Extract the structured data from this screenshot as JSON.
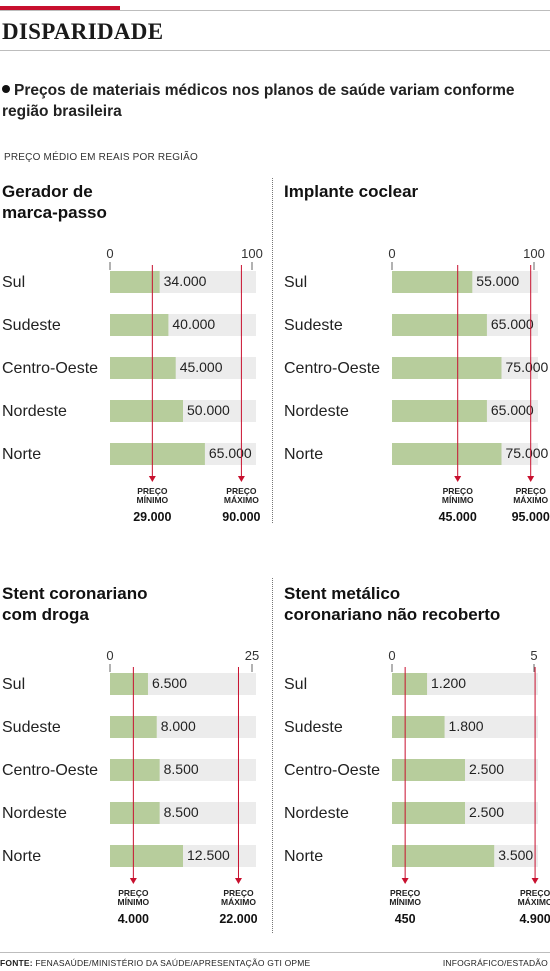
{
  "header": {
    "title": "DISPARIDADE",
    "subtitle": "Preços de materiais médicos nos planos de saúde variam conforme região brasileira",
    "unit": "PREÇO MÉDIO EM REAIS POR REGIÃO"
  },
  "footer": {
    "source_label": "FONTE:",
    "source_text": "FENASAÚDE/MINISTÉRIO DA SAÚDE/APRESENTAÇÃO GTI OPME",
    "credit": "INFOGRÁFICO/ESTADÃO"
  },
  "colors": {
    "bar": "#b7cd9c",
    "track": "#ececec",
    "marker": "#c8102e",
    "accent": "#c8102e"
  },
  "chart_data": [
    {
      "type": "bar",
      "title_lines": [
        "Gerador de",
        "marca-passo"
      ],
      "scale_max": 100000,
      "tick_labels": [
        "0",
        "100"
      ],
      "categories": [
        "Sul",
        "Sudeste",
        "Centro-Oeste",
        "Nordeste",
        "Norte"
      ],
      "values": [
        34000,
        40000,
        45000,
        50000,
        65000
      ],
      "value_labels": [
        "34.000",
        "40.000",
        "45.000",
        "50.000",
        "65.000"
      ],
      "min": {
        "label_lines": [
          "PREÇO",
          "MÍNIMO"
        ],
        "value": 29000,
        "value_label": "29.000"
      },
      "max": {
        "label_lines": [
          "PREÇO",
          "MÁXIMO"
        ],
        "value": 90000,
        "value_label": "90.000"
      }
    },
    {
      "type": "bar",
      "title_lines": [
        "Implante coclear"
      ],
      "scale_max": 100000,
      "tick_labels": [
        "0",
        "100"
      ],
      "categories": [
        "Sul",
        "Sudeste",
        "Centro-Oeste",
        "Nordeste",
        "Norte"
      ],
      "values": [
        55000,
        65000,
        75000,
        65000,
        75000
      ],
      "value_labels": [
        "55.000",
        "65.000",
        "75.000",
        "65.000",
        "75.000"
      ],
      "min": {
        "label_lines": [
          "PREÇO",
          "MÍNIMO"
        ],
        "value": 45000,
        "value_label": "45.000"
      },
      "max": {
        "label_lines": [
          "PREÇO",
          "MÁXIMO"
        ],
        "value": 95000,
        "value_label": "95.000"
      }
    },
    {
      "type": "bar",
      "title_lines": [
        "Stent coronariano",
        "com droga"
      ],
      "scale_max": 25000,
      "tick_labels": [
        "0",
        "25"
      ],
      "categories": [
        "Sul",
        "Sudeste",
        "Centro-Oeste",
        "Nordeste",
        "Norte"
      ],
      "values": [
        6500,
        8000,
        8500,
        8500,
        12500
      ],
      "value_labels": [
        "6.500",
        "8.000",
        "8.500",
        "8.500",
        "12.500"
      ],
      "min": {
        "label_lines": [
          "PREÇO",
          "MÍNIMO"
        ],
        "value": 4000,
        "value_label": "4.000"
      },
      "max": {
        "label_lines": [
          "PREÇO",
          "MÁXIMO"
        ],
        "value": 22000,
        "value_label": "22.000"
      }
    },
    {
      "type": "bar",
      "title_lines": [
        "Stent metálico",
        "coronariano não recoberto"
      ],
      "scale_max": 5000,
      "tick_labels": [
        "0",
        "5"
      ],
      "categories": [
        "Sul",
        "Sudeste",
        "Centro-Oeste",
        "Nordeste",
        "Norte"
      ],
      "values": [
        1200,
        1800,
        2500,
        2500,
        3500
      ],
      "value_labels": [
        "1.200",
        "1.800",
        "2.500",
        "2.500",
        "3.500"
      ],
      "min": {
        "label_lines": [
          "PREÇO",
          "MÍNIMO"
        ],
        "value": 450,
        "value_label": "450"
      },
      "max": {
        "label_lines": [
          "PREÇO",
          "MÁXIMO"
        ],
        "value": 4900,
        "value_label": "4.900"
      }
    }
  ]
}
